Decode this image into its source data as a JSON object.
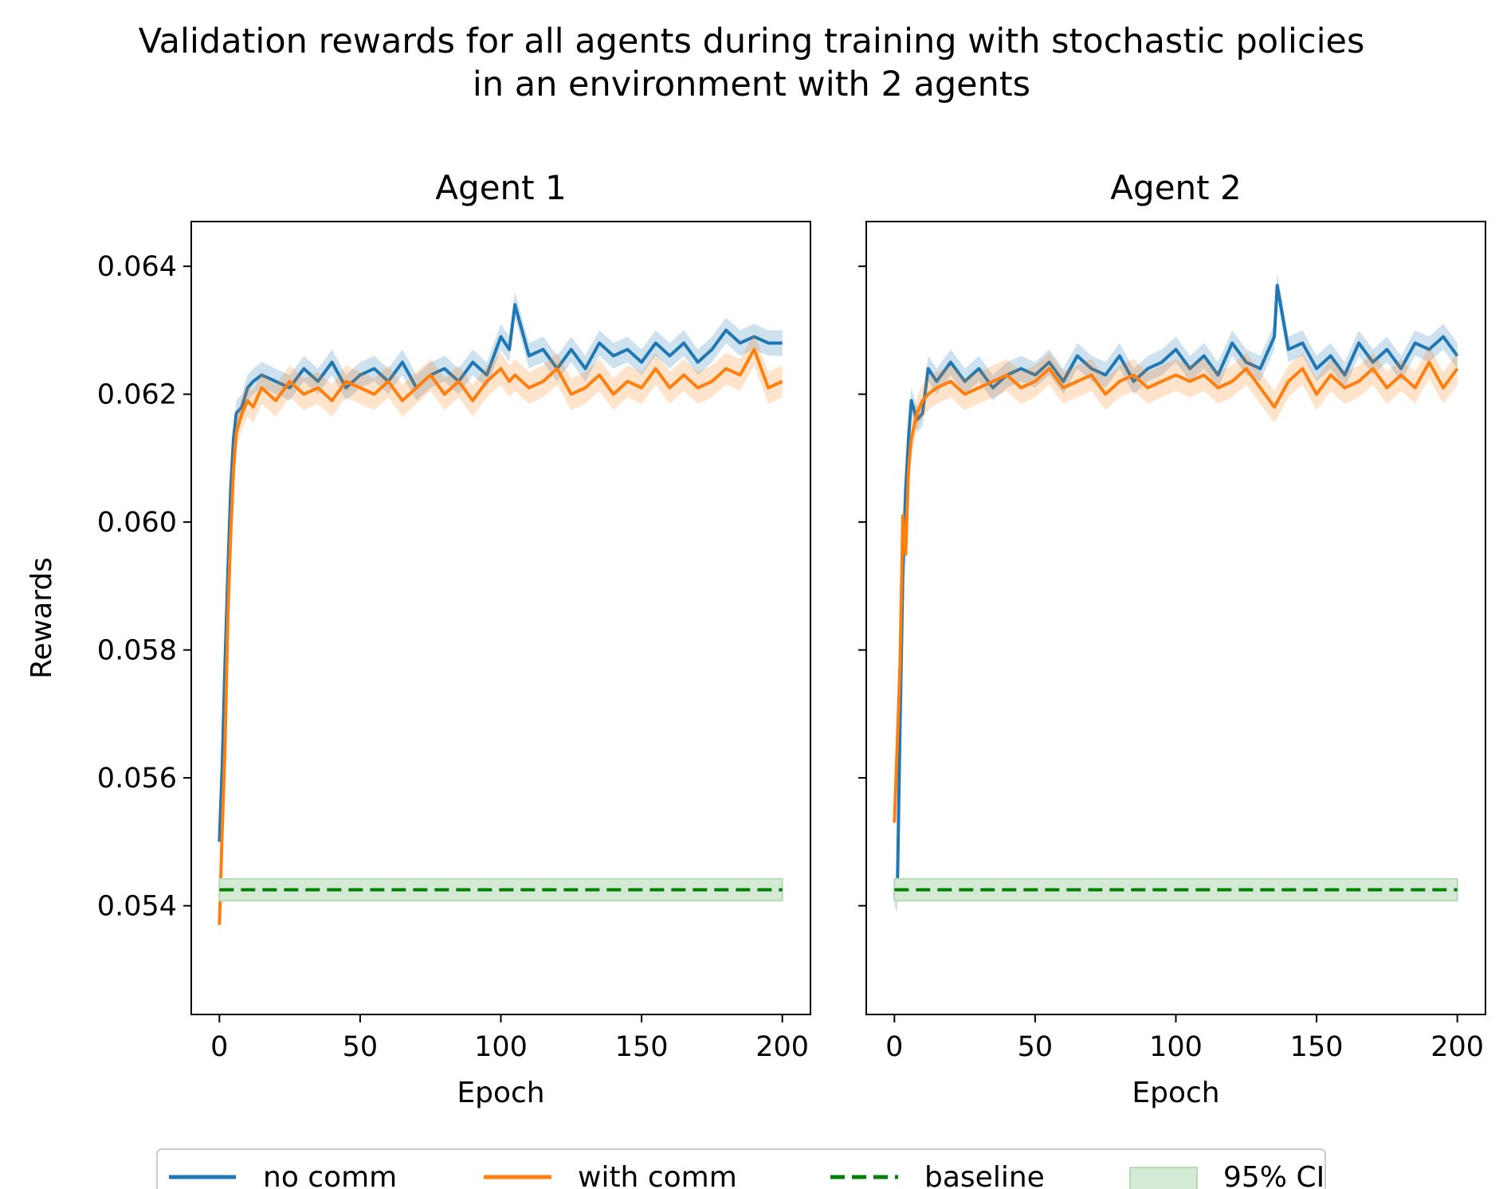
{
  "figure": {
    "title_line1": "Validation rewards for all agents during training with stochastic policies",
    "title_line2": "in an environment with 2 agents"
  },
  "legend": {
    "no_comm": "no comm",
    "with_comm": "with comm",
    "baseline": "baseline",
    "ci": "95% CI"
  },
  "colors": {
    "no_comm": "#1f77b4",
    "with_comm": "#ff7f0e",
    "baseline": "#008000",
    "ci_fill": "#d4ead4"
  },
  "chart_data": [
    {
      "type": "line",
      "title": "Agent 1",
      "xlabel": "Epoch",
      "ylabel": "Rewards",
      "xlim": [
        -10,
        210
      ],
      "ylim": [
        0.0523,
        0.0647
      ],
      "xticks": [
        0,
        50,
        100,
        150,
        200
      ],
      "yticks": [
        0.054,
        0.056,
        0.058,
        0.06,
        0.062,
        0.064
      ],
      "ytick_labels": [
        "0.054",
        "0.056",
        "0.058",
        "0.060",
        "0.062",
        "0.064"
      ],
      "grid": false,
      "legend_position": "bottom-center",
      "series": [
        {
          "name": "no comm",
          "x": [
            0,
            1,
            2,
            3,
            4,
            5,
            6,
            8,
            10,
            12,
            15,
            20,
            25,
            30,
            35,
            40,
            45,
            50,
            55,
            60,
            65,
            70,
            75,
            80,
            85,
            90,
            95,
            100,
            103,
            105,
            110,
            115,
            120,
            125,
            130,
            135,
            140,
            145,
            150,
            155,
            160,
            165,
            170,
            175,
            180,
            185,
            190,
            195,
            200
          ],
          "y": [
            0.055,
            0.0562,
            0.0578,
            0.0592,
            0.0605,
            0.0613,
            0.0617,
            0.0618,
            0.0621,
            0.0622,
            0.0623,
            0.0622,
            0.0621,
            0.0624,
            0.0622,
            0.0625,
            0.0621,
            0.0623,
            0.0624,
            0.0622,
            0.0625,
            0.0621,
            0.0623,
            0.0624,
            0.0622,
            0.0625,
            0.0623,
            0.0629,
            0.0627,
            0.0634,
            0.0626,
            0.0627,
            0.0624,
            0.0627,
            0.0624,
            0.0628,
            0.0626,
            0.0627,
            0.0625,
            0.0628,
            0.0626,
            0.0628,
            0.0625,
            0.0627,
            0.063,
            0.0628,
            0.0629,
            0.0628,
            0.0628
          ],
          "ci_width": 0.0004
        },
        {
          "name": "with comm",
          "x": [
            0,
            1,
            2,
            3,
            4,
            5,
            6,
            8,
            10,
            12,
            15,
            20,
            25,
            30,
            35,
            40,
            45,
            50,
            55,
            60,
            65,
            70,
            75,
            80,
            85,
            90,
            95,
            100,
            103,
            105,
            110,
            115,
            120,
            125,
            130,
            135,
            140,
            145,
            150,
            155,
            160,
            165,
            170,
            175,
            180,
            185,
            190,
            195,
            200
          ],
          "y": [
            0.0537,
            0.0552,
            0.0565,
            0.0585,
            0.0598,
            0.0608,
            0.0614,
            0.0617,
            0.0619,
            0.0618,
            0.0621,
            0.0619,
            0.0622,
            0.062,
            0.0621,
            0.0619,
            0.0622,
            0.0621,
            0.062,
            0.0622,
            0.0619,
            0.0621,
            0.0623,
            0.062,
            0.0622,
            0.0619,
            0.0622,
            0.0624,
            0.0622,
            0.0623,
            0.0621,
            0.0622,
            0.0624,
            0.062,
            0.0621,
            0.0623,
            0.062,
            0.0622,
            0.0621,
            0.0624,
            0.0621,
            0.0623,
            0.0621,
            0.0622,
            0.0624,
            0.0623,
            0.0627,
            0.0621,
            0.0622
          ],
          "ci_width": 0.0005
        },
        {
          "name": "baseline",
          "x": [
            0,
            200
          ],
          "y": [
            0.05425,
            0.05425
          ],
          "ci": [
            0.05408,
            0.05442
          ]
        }
      ]
    },
    {
      "type": "line",
      "title": "Agent 2",
      "xlabel": "Epoch",
      "xlim": [
        -10,
        210
      ],
      "ylim": [
        0.0523,
        0.0647
      ],
      "xticks": [
        0,
        50,
        100,
        150,
        200
      ],
      "grid": false,
      "series": [
        {
          "name": "no comm",
          "x": [
            0,
            1,
            2,
            3,
            4,
            5,
            6,
            8,
            10,
            12,
            15,
            20,
            25,
            30,
            35,
            40,
            45,
            50,
            55,
            60,
            65,
            70,
            75,
            80,
            85,
            90,
            95,
            100,
            105,
            110,
            115,
            120,
            125,
            130,
            135,
            136,
            140,
            145,
            150,
            155,
            160,
            165,
            170,
            175,
            180,
            185,
            190,
            195,
            200
          ],
          "y": [
            0.0542,
            0.0541,
            0.0568,
            0.0592,
            0.0605,
            0.0613,
            0.0619,
            0.0616,
            0.0617,
            0.0624,
            0.0622,
            0.0625,
            0.0622,
            0.0624,
            0.0621,
            0.0623,
            0.0624,
            0.0623,
            0.0625,
            0.0622,
            0.0626,
            0.0624,
            0.0623,
            0.0626,
            0.0622,
            0.0624,
            0.0625,
            0.0627,
            0.0624,
            0.0626,
            0.0623,
            0.0628,
            0.0625,
            0.0624,
            0.0629,
            0.0637,
            0.0627,
            0.0628,
            0.0624,
            0.0626,
            0.0623,
            0.0628,
            0.0625,
            0.0627,
            0.0624,
            0.0628,
            0.0627,
            0.0629,
            0.0626
          ],
          "ci_width": 0.0004
        },
        {
          "name": "with comm",
          "x": [
            0,
            1,
            2,
            3,
            4,
            5,
            6,
            8,
            10,
            12,
            15,
            20,
            25,
            30,
            35,
            40,
            45,
            50,
            55,
            60,
            65,
            70,
            75,
            80,
            85,
            90,
            95,
            100,
            105,
            110,
            115,
            120,
            125,
            130,
            135,
            140,
            145,
            150,
            155,
            160,
            165,
            170,
            175,
            180,
            185,
            190,
            195,
            200
          ],
          "y": [
            0.0553,
            0.0565,
            0.0578,
            0.0601,
            0.0595,
            0.0608,
            0.0613,
            0.0617,
            0.0619,
            0.062,
            0.0621,
            0.0622,
            0.062,
            0.0621,
            0.0622,
            0.0623,
            0.0621,
            0.0622,
            0.0624,
            0.0621,
            0.0622,
            0.0623,
            0.062,
            0.0622,
            0.0623,
            0.0621,
            0.0622,
            0.0623,
            0.0622,
            0.0623,
            0.0621,
            0.0622,
            0.0624,
            0.0621,
            0.0618,
            0.0622,
            0.0624,
            0.062,
            0.0623,
            0.0621,
            0.0622,
            0.0624,
            0.0621,
            0.0623,
            0.0621,
            0.0625,
            0.0621,
            0.0624
          ],
          "ci_width": 0.0005
        },
        {
          "name": "baseline",
          "x": [
            0,
            200
          ],
          "y": [
            0.05425,
            0.05425
          ],
          "ci": [
            0.05408,
            0.05442
          ]
        }
      ]
    }
  ]
}
